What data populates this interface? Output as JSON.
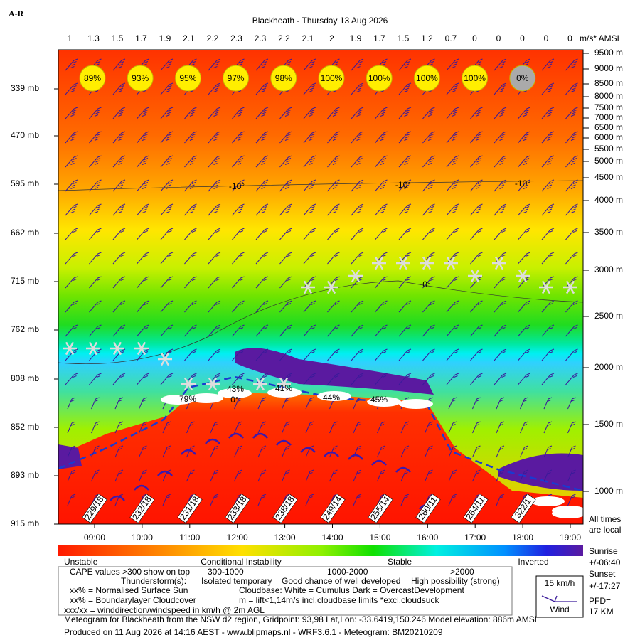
{
  "header": {
    "logo": "A-R",
    "title": "Blackheath - Thursday 13 Aug 2026"
  },
  "lift_scale": {
    "values": [
      "1",
      "1.3",
      "1.5",
      "1.7",
      "1.9",
      "2.1",
      "2.2",
      "2.3",
      "2.3",
      "2.2",
      "2.1",
      "2",
      "1.9",
      "1.7",
      "1.5",
      "1.2",
      "0.7",
      "0",
      "0",
      "0",
      "0",
      "0"
    ],
    "unit": "m/s* AMSL"
  },
  "altitude_labels": [
    "9500 m",
    "9000 m",
    "8500 m",
    "8000 m",
    "7500 m",
    "7000 m",
    "6500 m",
    "6000 m",
    "5500 m",
    "5000 m",
    "4500 m",
    "4000 m",
    "3500 m",
    "3000 m",
    "2500 m",
    "2000 m",
    "1500 m",
    "1000 m"
  ],
  "pressure_labels": [
    "339 mb",
    "470 mb",
    "595 mb",
    "662 mb",
    "715 mb",
    "762 mb",
    "808 mb",
    "852 mb",
    "893 mb",
    "915 mb"
  ],
  "times": [
    "09:00",
    "10:00",
    "11:00",
    "12:00",
    "13:00",
    "14:00",
    "15:00",
    "16:00",
    "17:00",
    "18:00",
    "19:00"
  ],
  "surface_sun": [
    "89%",
    "93%",
    "95%",
    "97%",
    "98%",
    "100%",
    "100%",
    "100%",
    "100%",
    "0%"
  ],
  "cloud_cover": [
    "79%",
    "43%",
    "41%",
    "44%",
    "45%"
  ],
  "isotherms": [
    "-10°",
    "-10°",
    "-10°",
    "0°",
    "0°"
  ],
  "wind": [
    "229/18",
    "232/18",
    "231/18",
    "233/18",
    "238/18",
    "249/14",
    "255/14",
    "260/11",
    "264/11",
    "322/1"
  ],
  "colorbar": [
    "Unstable",
    "Conditional Instability",
    "Stable",
    "Inverted"
  ],
  "side": {
    "times_note_1": "All times",
    "times_note_2": "are local",
    "sunrise": "Sunrise",
    "sunrise_time": "+/-06:40",
    "sunset": "Sunset",
    "sunset_time": "+/-17:27",
    "wind_scale": "15 km/h",
    "wind_word": "Wind",
    "pfd": "PFD=",
    "pfd_value": "17 KM"
  },
  "legend": {
    "cape": "CAPE values >300 show on top",
    "cape_1": "300-1000",
    "cape_2": "1000-2000",
    "cape_3": ">2000",
    "thunder": "Thunderstorm(s):",
    "thunder_1": "Isolated temporary",
    "thunder_2": "Good chance of well developed",
    "thunder_3": "High possibility (strong)",
    "sun": "xx% = Normalised Surface Sun",
    "cloudbase": "Cloudbase: White = Cumulus   Dark = OvercastDevelopment",
    "bl": "xx% = Boundarylayer Cloudcover",
    "lift": "m = lift<1,14m/s incl.cloudbase limits *excl.cloudsuck",
    "wind": "xxx/xx = winddirection/windspeed in km/h @ 2m AGL"
  },
  "footer": {
    "meta": "Meteogram for Blackheath from the NSW d2 region, Gridpoint: 93,98 Lat,Lon: -33.6419,150.246 Model elevation: 886m AMSL",
    "produced": "Produced on 11 Aug 2026 at 14:16 AEST - www.blipmaps.nl - WRF3.6.1 - Meteogram: BM20210209"
  }
}
